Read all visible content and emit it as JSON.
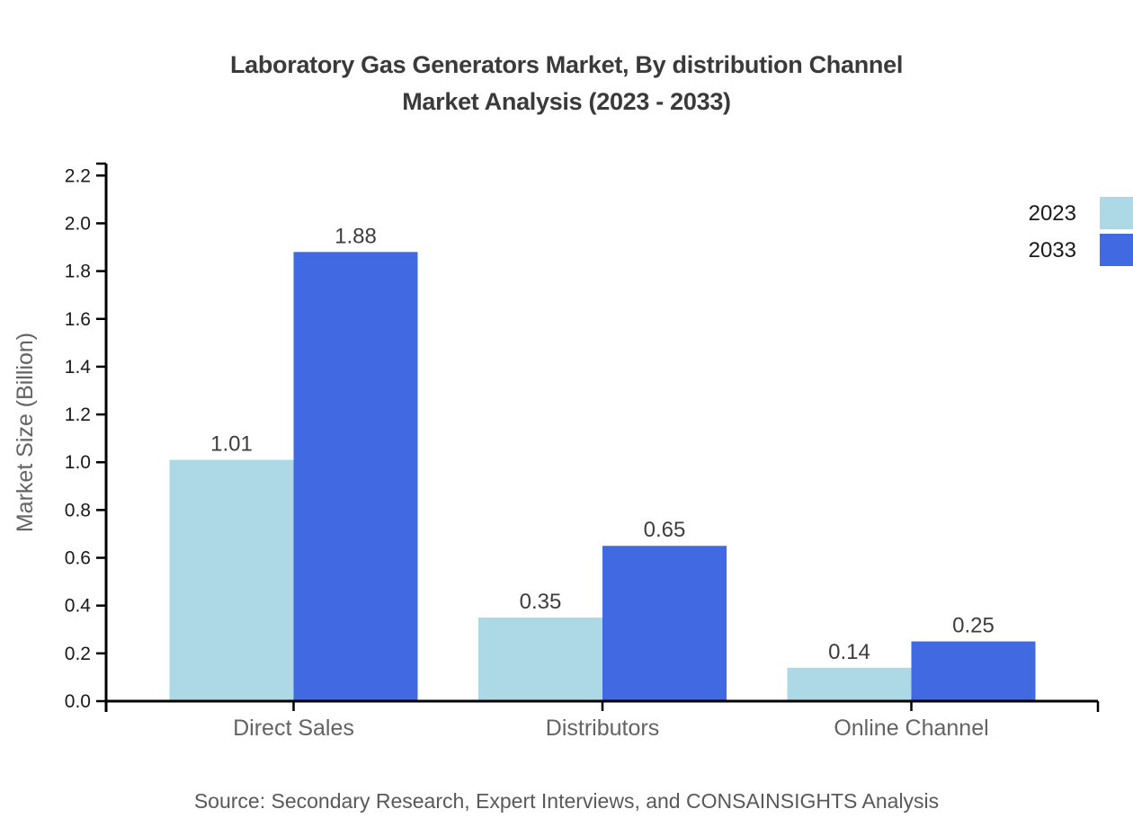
{
  "title": {
    "line1": "Laboratory Gas Generators Market, By distribution Channel",
    "line2": "Market Analysis (2023 - 2033)"
  },
  "source": "Source: Secondary Research, Expert Interviews, and CONSAINSIGHTS Analysis",
  "chart_data": {
    "type": "bar",
    "title": "Laboratory Gas Generators Market, By distribution Channel Market Analysis (2023 - 2033)",
    "categories": [
      "Direct Sales",
      "Distributors",
      "Online Channel"
    ],
    "series": [
      {
        "name": "2023",
        "color": "#ADD8E6",
        "values": [
          1.01,
          0.35,
          0.14
        ]
      },
      {
        "name": "2033",
        "color": "#4169E1",
        "values": [
          1.88,
          0.65,
          0.25
        ]
      }
    ],
    "value_labels": [
      [
        "1.01",
        "0.35",
        "0.14"
      ],
      [
        "1.88",
        "0.65",
        "0.25"
      ]
    ],
    "xlabel": "",
    "ylabel": "Market Size (Billion)",
    "ylim": [
      0,
      2.25
    ],
    "yticks": [
      "0.0",
      "0.2",
      "0.4",
      "0.6",
      "0.8",
      "1.0",
      "1.2",
      "1.4",
      "1.6",
      "1.8",
      "2.0",
      "2.2"
    ],
    "grid": false,
    "legend_position": "top-right",
    "colors": {
      "axis": "#000000",
      "tick_label": "#1a1a1a",
      "value_label": "#3d3d3d",
      "category_label": "#636363",
      "axis_label": "#636363",
      "legend_label": "#1a1a1a"
    }
  }
}
